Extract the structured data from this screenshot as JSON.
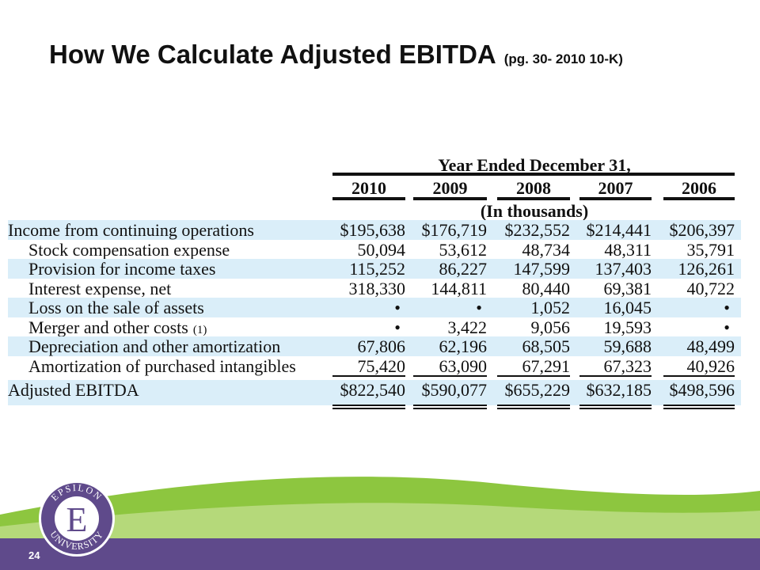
{
  "title": "How We Calculate Adjusted EBITDA",
  "title_note": "(pg. 30- 2010 10-K)",
  "table": {
    "group_header": "Year Ended December 31,",
    "columns": [
      "2010",
      "2009",
      "2008",
      "2007",
      "2006"
    ],
    "units": "(In thousands)",
    "rows": [
      {
        "label": "Income from continuing operations",
        "values": [
          "$195,638",
          "$176,719",
          "$232,552",
          "$214,441",
          "$206,397"
        ]
      },
      {
        "label": "Stock compensation expense",
        "values": [
          "50,094",
          "53,612",
          "48,734",
          "48,311",
          "35,791"
        ]
      },
      {
        "label": "Provision for income taxes",
        "values": [
          "115,252",
          "86,227",
          "147,599",
          "137,403",
          "126,261"
        ]
      },
      {
        "label": "Interest expense, net",
        "values": [
          "318,330",
          "144,811",
          "80,440",
          "69,381",
          "40,722"
        ]
      },
      {
        "label": "Loss on the sale of assets",
        "values": [
          "•",
          "•",
          "1,052",
          "16,045",
          "•"
        ]
      },
      {
        "label": "Merger and other costs",
        "footnote": "(1)",
        "values": [
          "•",
          "3,422",
          "9,056",
          "19,593",
          "•"
        ]
      },
      {
        "label": "Depreciation and other amortization",
        "values": [
          "67,806",
          "62,196",
          "68,505",
          "59,688",
          "48,499"
        ]
      },
      {
        "label": "Amortization of purchased intangibles",
        "values": [
          "75,420",
          "63,090",
          "67,291",
          "67,323",
          "40,926"
        ]
      },
      {
        "label": "Adjusted EBITDA",
        "values": [
          "$822,540",
          "$590,077",
          "$655,229",
          "$632,185",
          "$498,596"
        ]
      }
    ]
  },
  "logo": {
    "letter": "E",
    "top_text": "EPSILON",
    "bottom_text": "UNIVERSITY"
  },
  "page_number": "24"
}
